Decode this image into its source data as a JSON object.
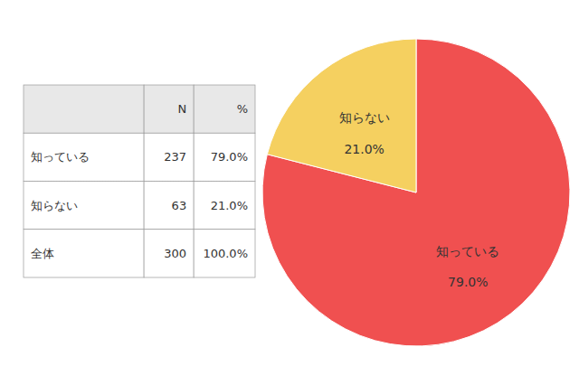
{
  "chart_data": [
    {
      "type": "pie",
      "categories": [
        "知っている",
        "知らない"
      ],
      "values": [
        79.0,
        21.0
      ],
      "value_labels": [
        "79.0%",
        "21.0%"
      ],
      "colors": [
        "#f05050",
        "#f5d060"
      ],
      "data_labels": true
    },
    {
      "type": "table",
      "categories": [
        "知っている",
        "知らない",
        "全体"
      ],
      "series": [
        {
          "name": "N",
          "values": [
            237,
            63,
            300
          ]
        },
        {
          "name": "%",
          "values": [
            79.0,
            21.0,
            100.0
          ],
          "value_labels": [
            "79.0%",
            "21.0%",
            "100.0%"
          ]
        }
      ],
      "data_labels": true
    }
  ]
}
